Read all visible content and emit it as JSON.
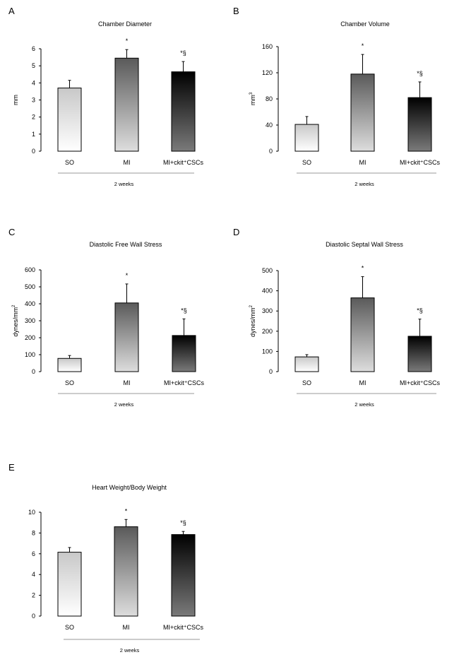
{
  "figure": {
    "colors": {
      "axis": "#000000",
      "footer_line": "#9a9a9a",
      "so_grad_top": "#c8c8c8",
      "so_grad_bottom": "#ffffff",
      "mi_grad_top": "#5a5a5a",
      "mi_grad_bottom": "#dddddd",
      "csc_grad_top": "#000000",
      "csc_grad_bottom": "#7a7a7a"
    }
  },
  "chart_data": [
    {
      "panel": "A",
      "type": "bar",
      "title": "Chamber Diameter",
      "ylabel": "mm",
      "ylabel_sup": "",
      "ylim": [
        0,
        6
      ],
      "yticks": [
        0,
        1,
        2,
        3,
        4,
        5,
        6
      ],
      "categories": [
        "SO",
        "MI",
        "MI+ckit⁺CSCs"
      ],
      "values": [
        3.7,
        5.45,
        4.65
      ],
      "errors": [
        0.45,
        0.5,
        0.6
      ],
      "significance": [
        "",
        "*",
        "*§"
      ],
      "xlabel": "2 weeks"
    },
    {
      "panel": "B",
      "type": "bar",
      "title": "Chamber Volume",
      "ylabel": "mm",
      "ylabel_sup": "3",
      "ylim": [
        0,
        160
      ],
      "yticks": [
        0,
        40,
        80,
        120,
        160
      ],
      "categories": [
        "SO",
        "MI",
        "MI+ckit⁺CSCs"
      ],
      "values": [
        41,
        118,
        82
      ],
      "errors": [
        12,
        30,
        24
      ],
      "significance": [
        "",
        "*",
        "*§"
      ],
      "xlabel": "2 weeks"
    },
    {
      "panel": "C",
      "type": "bar",
      "title": "Diastolic Free Wall Stress",
      "ylabel": "dynes/mm",
      "ylabel_sup": "2",
      "ylim": [
        0,
        600
      ],
      "yticks": [
        0,
        100,
        200,
        300,
        400,
        500,
        600
      ],
      "categories": [
        "SO",
        "MI",
        "MI+ckit⁺CSCs"
      ],
      "values": [
        78,
        405,
        213
      ],
      "errors": [
        17,
        112,
        98
      ],
      "significance": [
        "",
        "*",
        "*§"
      ],
      "xlabel": "2 weeks"
    },
    {
      "panel": "D",
      "type": "bar",
      "title": "Diastolic Septal Wall Stress",
      "ylabel": "dynes/mm",
      "ylabel_sup": "2",
      "ylim": [
        0,
        500
      ],
      "yticks": [
        0,
        100,
        200,
        300,
        400,
        500
      ],
      "categories": [
        "SO",
        "MI",
        "MI+ckit⁺CSCs"
      ],
      "values": [
        73,
        365,
        175
      ],
      "errors": [
        11,
        105,
        85
      ],
      "significance": [
        "",
        "*",
        "*§"
      ],
      "xlabel": "2 weeks"
    },
    {
      "panel": "E",
      "type": "bar",
      "title": "Heart Weight/Body Weight",
      "ylabel": "",
      "ylabel_sup": "",
      "ylim": [
        0,
        10
      ],
      "yticks": [
        0,
        2,
        4,
        6,
        8,
        10
      ],
      "categories": [
        "SO",
        "MI",
        "MI+ckit⁺CSCs"
      ],
      "values": [
        6.15,
        8.6,
        7.85
      ],
      "errors": [
        0.45,
        0.7,
        0.3
      ],
      "significance": [
        "",
        "*",
        "*§"
      ],
      "xlabel": "2 weeks"
    }
  ]
}
